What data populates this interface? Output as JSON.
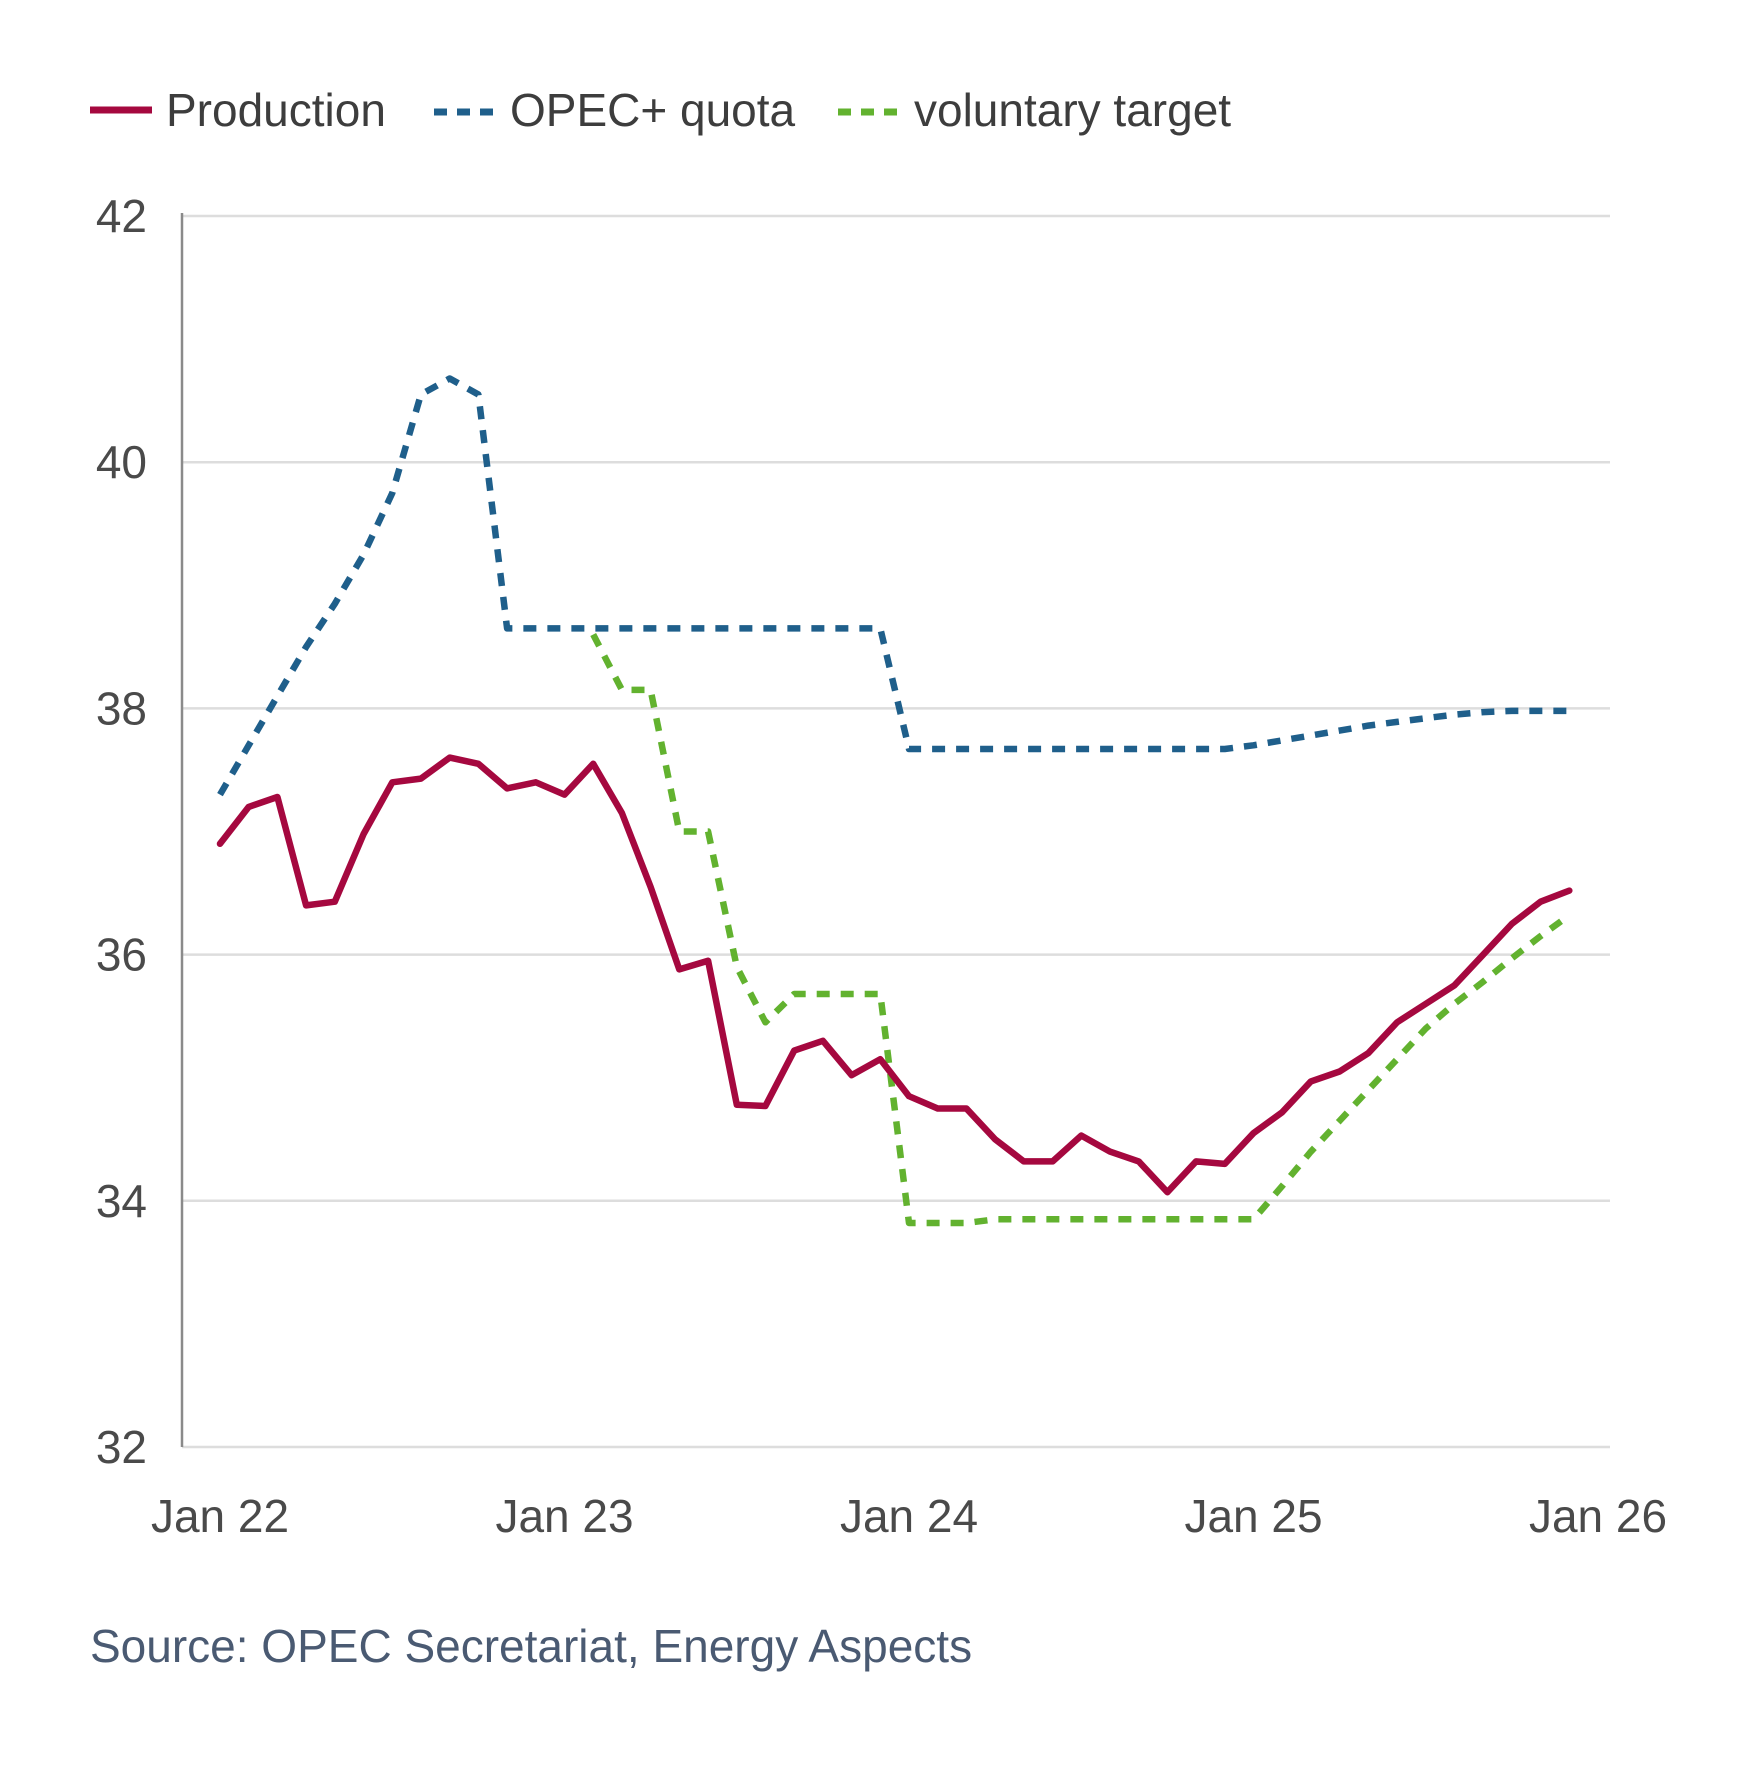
{
  "source": "Source: OPEC Secretariat, Energy Aspects",
  "colors": {
    "production": "#a5083f",
    "opec_quota": "#1f5f8b",
    "voluntary_target": "#62b22f",
    "grid": "#dddddd",
    "axis": "#8a8a8a"
  },
  "chart_data": {
    "type": "line",
    "title": "",
    "xlabel": "",
    "ylabel": "",
    "ylim": [
      32,
      42
    ],
    "yticks": [
      32,
      34,
      36,
      38,
      40,
      42
    ],
    "xticks": [
      {
        "value": 2022.0,
        "label": "Jan 22"
      },
      {
        "value": 2023.0,
        "label": "Jan 23"
      },
      {
        "value": 2024.0,
        "label": "Jan 24"
      },
      {
        "value": 2025.0,
        "label": "Jan 25"
      },
      {
        "value": 2026.0,
        "label": "Jan 26"
      }
    ],
    "xlim": [
      2022.0,
      2026.0
    ],
    "legend_position": "top-left",
    "grid": true,
    "series": [
      {
        "name": "Production",
        "key": "production",
        "style": "solid",
        "x": [
          2022.0,
          2022.0833,
          2022.1667,
          2022.25,
          2022.3333,
          2022.4167,
          2022.5,
          2022.5833,
          2022.6667,
          2022.75,
          2022.8333,
          2022.9167,
          2023.0,
          2023.0833,
          2023.1667,
          2023.25,
          2023.3333,
          2023.4167,
          2023.5,
          2023.5833,
          2023.6667,
          2023.75,
          2023.8333,
          2023.9167,
          2024.0,
          2024.0833,
          2024.1667,
          2024.25,
          2024.3333,
          2024.4167,
          2024.5,
          2024.5833,
          2024.6667,
          2024.75,
          2024.8333,
          2024.9167,
          2025.0,
          2025.0833,
          2025.1667,
          2025.25,
          2025.3333,
          2025.4167,
          2025.5,
          2025.5833,
          2025.6667,
          2025.75,
          2025.8333,
          2025.9167
        ],
        "values": [
          36.9,
          37.2,
          37.28,
          36.4,
          36.43,
          36.98,
          37.4,
          37.43,
          37.6,
          37.55,
          37.35,
          37.4,
          37.3,
          37.55,
          37.15,
          36.55,
          35.88,
          35.95,
          34.78,
          34.77,
          35.22,
          35.3,
          35.02,
          35.15,
          34.85,
          34.75,
          34.75,
          34.5,
          34.32,
          34.32,
          34.53,
          34.4,
          34.32,
          34.07,
          34.32,
          34.3,
          34.55,
          34.72,
          34.97,
          35.05,
          35.2,
          35.45,
          35.6,
          35.75,
          36.0,
          36.25,
          36.43,
          36.52
        ]
      },
      {
        "name": "OPEC+ quota",
        "key": "opec_quota",
        "style": "dashed",
        "x": [
          2022.0,
          2022.0833,
          2022.1667,
          2022.25,
          2022.3333,
          2022.4167,
          2022.5,
          2022.5833,
          2022.6667,
          2022.75,
          2022.8333,
          2022.9167,
          2023.0,
          2023.0833,
          2023.1667,
          2023.25,
          2023.3333,
          2023.4167,
          2023.5,
          2023.5833,
          2023.6667,
          2023.75,
          2023.8333,
          2023.9167,
          2024.0,
          2024.0833,
          2024.1667,
          2024.25,
          2024.3333,
          2024.4167,
          2024.5,
          2024.5833,
          2024.6667,
          2024.75,
          2024.8333,
          2024.9167,
          2025.0,
          2025.0833,
          2025.1667,
          2025.25,
          2025.3333,
          2025.4167,
          2025.5,
          2025.5833,
          2025.6667,
          2025.75,
          2025.8333,
          2025.9167
        ],
        "values": [
          37.3,
          37.7,
          38.1,
          38.5,
          38.85,
          39.25,
          39.75,
          40.55,
          40.68,
          40.55,
          38.65,
          38.65,
          38.65,
          38.65,
          38.65,
          38.65,
          38.65,
          38.65,
          38.65,
          38.65,
          38.65,
          38.65,
          38.65,
          38.65,
          37.67,
          37.67,
          37.67,
          37.67,
          37.67,
          37.67,
          37.67,
          37.67,
          37.67,
          37.67,
          37.67,
          37.67,
          37.7,
          37.74,
          37.78,
          37.82,
          37.86,
          37.89,
          37.92,
          37.95,
          37.97,
          37.98,
          37.98,
          37.98
        ]
      },
      {
        "name": "voluntary target",
        "key": "voluntary_target",
        "style": "dashed",
        "x": [
          2023.0833,
          2023.1667,
          2023.25,
          2023.3333,
          2023.4167,
          2023.5,
          2023.5833,
          2023.6667,
          2023.75,
          2023.8333,
          2023.9167,
          2024.0,
          2024.0833,
          2024.1667,
          2024.25,
          2024.3333,
          2024.4167,
          2024.5,
          2024.5833,
          2024.6667,
          2024.75,
          2024.8333,
          2024.9167,
          2025.0,
          2025.0833,
          2025.1667,
          2025.25,
          2025.3333,
          2025.4167,
          2025.5,
          2025.5833,
          2025.6667,
          2025.75,
          2025.8333,
          2025.9167
        ],
        "values": [
          38.6,
          38.15,
          38.15,
          37.0,
          37.0,
          35.9,
          35.45,
          35.68,
          35.68,
          35.68,
          35.68,
          33.82,
          33.82,
          33.82,
          33.85,
          33.85,
          33.85,
          33.85,
          33.85,
          33.85,
          33.85,
          33.85,
          33.85,
          33.85,
          34.12,
          34.4,
          34.65,
          34.9,
          35.15,
          35.4,
          35.6,
          35.78,
          35.97,
          36.15,
          36.32
        ]
      }
    ]
  }
}
